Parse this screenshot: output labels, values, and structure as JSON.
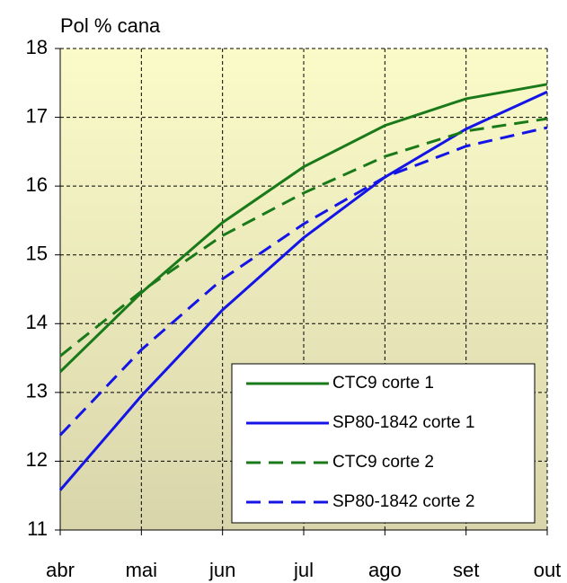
{
  "chart_data": {
    "type": "line",
    "y_label": "Pol % cana",
    "categories": [
      "abr",
      "mai",
      "jun",
      "jul",
      "ago",
      "set",
      "out"
    ],
    "series": [
      {
        "name": "CTC9 corte 1",
        "color": "#1a7a1a",
        "dashed": false,
        "values": [
          13.3,
          14.45,
          15.47,
          16.28,
          16.88,
          17.27,
          17.48
        ]
      },
      {
        "name": "SP80-1842 corte 1",
        "color": "#1414e6",
        "dashed": false,
        "values": [
          11.58,
          12.95,
          14.2,
          15.25,
          16.13,
          16.83,
          17.37
        ]
      },
      {
        "name": "CTC9 corte 2",
        "color": "#1a7a1a",
        "dashed": true,
        "values": [
          13.53,
          14.47,
          15.28,
          15.9,
          16.43,
          16.8,
          16.98
        ]
      },
      {
        "name": "SP80-1842 corte 2",
        "color": "#1414e6",
        "dashed": true,
        "values": [
          12.38,
          13.62,
          14.65,
          15.45,
          16.13,
          16.58,
          16.85
        ]
      }
    ],
    "ylim": [
      11,
      18
    ],
    "yticks": [
      11,
      12,
      13,
      14,
      15,
      16,
      17,
      18
    ],
    "grid": true,
    "legend": "lower right"
  }
}
